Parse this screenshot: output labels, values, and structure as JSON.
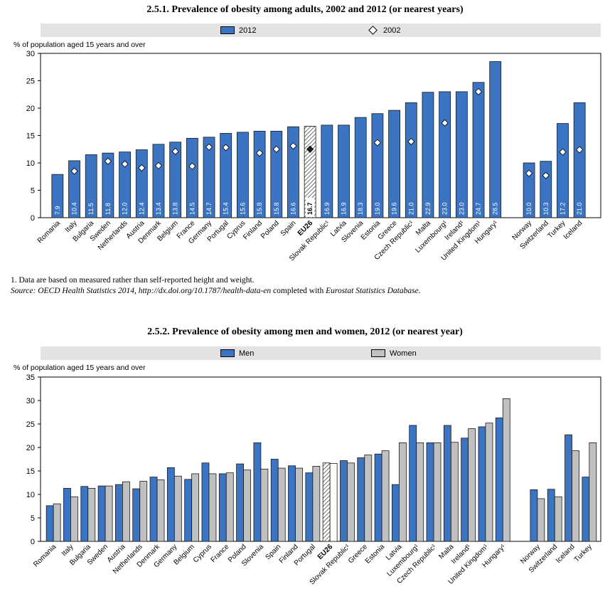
{
  "chart_data": [
    {
      "type": "bar",
      "title": "2.5.1.  Prevalence of obesity among adults, 2002 and 2012 (or nearest years)",
      "ylabel": "% of population aged 15 years and over",
      "ylim": [
        0,
        30
      ],
      "yticks": [
        "0",
        "5",
        "10",
        "15",
        "20",
        "25",
        "30"
      ],
      "legend": {
        "position": "top",
        "bar_label": "2012",
        "marker_label": "2002"
      },
      "grid": false,
      "colors": {
        "bar": "#3a74c2",
        "bar_edge": "#1a1a1a",
        "eu_bar": "hatched",
        "marker_fill": "#ffffff",
        "eu_marker_fill": "#222222"
      },
      "categories": [
        "Romania",
        "Italy",
        "Bulgaria",
        "Sweden",
        "Netherlands",
        "Austria",
        "Denmark",
        "Belgium",
        "France",
        "Germany",
        "Portugal",
        "Cyprus",
        "Finland",
        "Poland",
        "Spain",
        "EU26",
        "Slovak Republic¹",
        "Latvia",
        "Slovenia",
        "Estonia",
        "Greece",
        "Czech Republic¹",
        "Malta",
        "Luxembourg¹",
        "Ireland¹",
        "United Kingdom¹",
        "Hungary¹",
        "",
        "Norway",
        "Switzerland",
        "Turkey",
        "Iceland"
      ],
      "series": [
        {
          "name": "2012",
          "values": [
            7.9,
            10.4,
            11.5,
            11.8,
            12.0,
            12.4,
            13.4,
            13.8,
            14.5,
            14.7,
            15.4,
            15.6,
            15.8,
            15.8,
            16.6,
            16.7,
            16.9,
            16.9,
            18.3,
            19.0,
            19.6,
            21.0,
            22.9,
            23.0,
            23.0,
            24.7,
            28.5,
            null,
            10.0,
            10.3,
            17.2,
            21.0
          ]
        },
        {
          "name": "2002",
          "values": [
            null,
            8.5,
            null,
            10.3,
            9.8,
            9.1,
            9.5,
            12.1,
            9.4,
            12.9,
            12.8,
            null,
            11.8,
            12.5,
            13.1,
            12.5,
            null,
            null,
            null,
            13.7,
            null,
            13.9,
            null,
            17.3,
            null,
            23.0,
            null,
            null,
            8.1,
            7.7,
            12.0,
            12.4
          ]
        }
      ],
      "data_labels": [
        "7.9",
        "10.4",
        "11.5",
        "11.8",
        "12.0",
        "12.4",
        "13.4",
        "13.8",
        "14.5",
        "14.7",
        "15.4",
        "15.6",
        "15.8",
        "15.8",
        "16.6",
        "16.7",
        "16.9",
        "16.9",
        "18.3",
        "19.0",
        "19.6",
        "21.0",
        "22.9",
        "23.0",
        "23.0",
        "24.7",
        "28.5",
        "",
        "10.0",
        "10.3",
        "17.2",
        "21.0"
      ]
    },
    {
      "type": "bar",
      "title": "2.5.2.  Prevalence of obesity among men and women, 2012 (or nearest year)",
      "ylabel": "% of population aged 15 years and over",
      "ylim": [
        0,
        35
      ],
      "yticks": [
        "0",
        "5",
        "10",
        "15",
        "20",
        "25",
        "30",
        "35"
      ],
      "legend": {
        "position": "top"
      },
      "grid": false,
      "colors": {
        "men": "#3a74c2",
        "women": "#c0c0c0",
        "edge": "#1a1a1a",
        "eu_bar": "hatched"
      },
      "categories": [
        "Romania",
        "Italy",
        "Bulgaria",
        "Sweden",
        "Austria",
        "Netherlands",
        "Denmark",
        "Germany",
        "Belgium",
        "Cyprus",
        "France",
        "Poland",
        "Slovenia",
        "Spain",
        "Finland",
        "Portugal",
        "EU26",
        "Slovak Republic¹",
        "Greece",
        "Estonia",
        "Latvia",
        "Luxembourg¹",
        "Czech Republic¹",
        "Malta",
        "Ireland¹",
        "United Kingdom¹",
        "Hungary¹",
        "",
        "Norway",
        "Switzerland",
        "Iceland",
        "Turkey"
      ],
      "series": [
        {
          "name": "Men",
          "values": [
            7.6,
            11.3,
            11.7,
            11.8,
            12.1,
            11.2,
            13.7,
            15.7,
            13.2,
            16.7,
            14.4,
            16.5,
            21.0,
            17.5,
            16.1,
            14.6,
            16.7,
            17.2,
            17.8,
            18.6,
            12.1,
            24.7,
            21.0,
            24.7,
            22.0,
            24.4,
            26.3,
            null,
            11.0,
            11.1,
            22.7,
            13.7
          ]
        },
        {
          "name": "Women",
          "values": [
            8.0,
            9.5,
            11.3,
            11.8,
            12.7,
            12.8,
            13.1,
            13.9,
            14.4,
            14.4,
            14.6,
            15.2,
            15.4,
            15.6,
            15.6,
            16.0,
            16.6,
            16.7,
            18.4,
            19.3,
            21.0,
            21.0,
            21.0,
            21.1,
            24.0,
            25.2,
            30.4,
            null,
            9.1,
            9.5,
            19.3,
            21.0
          ]
        }
      ]
    }
  ],
  "footnote": "1.  Data are based on measured rather than self-reported height and weight.",
  "source": {
    "label": "Source:",
    "text": "OECD Health Statistics 2014, http://dx.doi.org/10.1787/health-data-en",
    "connector": "completed with",
    "db": "Eurostat Statistics Database",
    "end": "."
  },
  "legend2": {
    "men": "Men",
    "women": "Women"
  }
}
